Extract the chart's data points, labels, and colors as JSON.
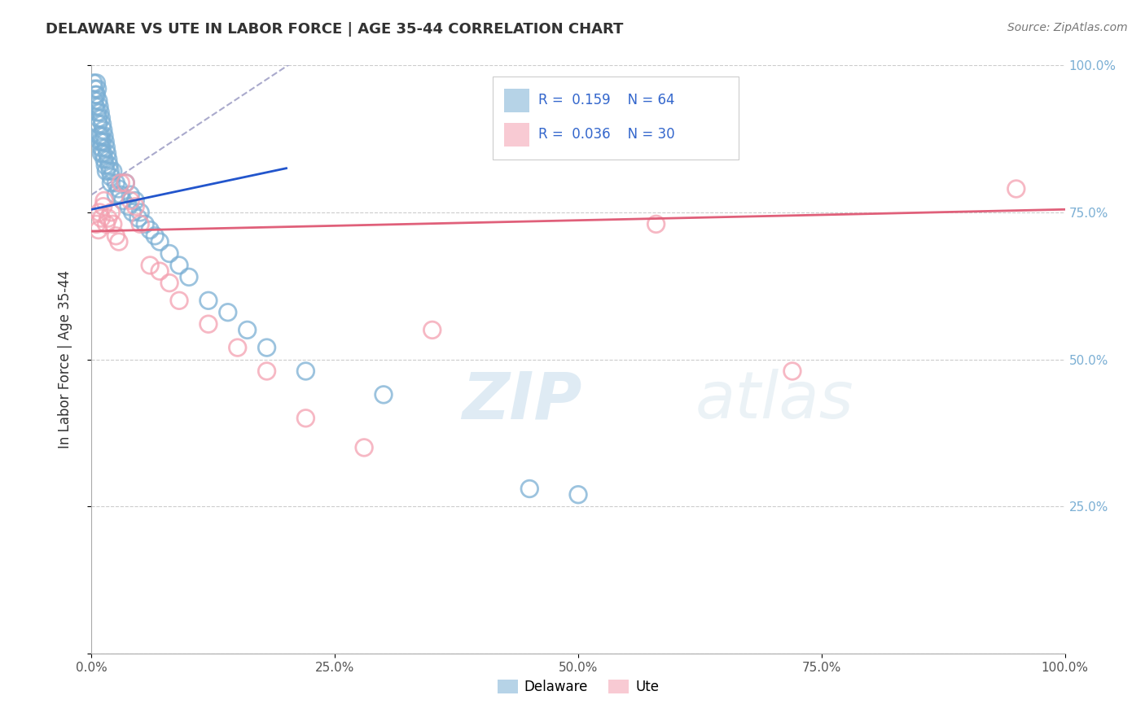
{
  "title": "DELAWARE VS UTE IN LABOR FORCE | AGE 35-44 CORRELATION CHART",
  "source": "Source: ZipAtlas.com",
  "ylabel": "In Labor Force | Age 35-44",
  "xlim": [
    0,
    1.0
  ],
  "ylim": [
    0,
    1.0
  ],
  "xticks": [
    0.0,
    0.25,
    0.5,
    0.75,
    1.0
  ],
  "yticks": [
    0.0,
    0.25,
    0.5,
    0.75,
    1.0
  ],
  "xticklabels": [
    "0.0%",
    "25.0%",
    "50.0%",
    "75.0%",
    "100.0%"
  ],
  "right_yticklabels": [
    "",
    "25.0%",
    "50.0%",
    "75.0%",
    "100.0%"
  ],
  "left_yticklabels": [
    "",
    "",
    "",
    "",
    ""
  ],
  "delaware_color": "#7bafd4",
  "ute_color": "#f4a0b0",
  "delaware_R": 0.159,
  "delaware_N": 64,
  "ute_R": 0.036,
  "ute_N": 30,
  "blue_line_color": "#2255cc",
  "pink_line_color": "#e0607a",
  "dashed_line_color": "#aaaacc",
  "legend_R_color": "#3366cc",
  "background_color": "#ffffff",
  "grid_color": "#cccccc",
  "watermark_color": "#d0e8f5",
  "delaware_x": [
    0.002,
    0.003,
    0.003,
    0.004,
    0.004,
    0.005,
    0.005,
    0.006,
    0.006,
    0.007,
    0.007,
    0.007,
    0.008,
    0.008,
    0.009,
    0.009,
    0.01,
    0.01,
    0.01,
    0.01,
    0.011,
    0.011,
    0.012,
    0.012,
    0.013,
    0.013,
    0.014,
    0.014,
    0.015,
    0.015,
    0.016,
    0.017,
    0.018,
    0.019,
    0.02,
    0.02,
    0.022,
    0.025,
    0.025,
    0.028,
    0.03,
    0.032,
    0.035,
    0.038,
    0.04,
    0.042,
    0.045,
    0.048,
    0.05,
    0.055,
    0.06,
    0.065,
    0.07,
    0.08,
    0.09,
    0.1,
    0.12,
    0.14,
    0.16,
    0.18,
    0.22,
    0.3,
    0.45,
    0.5
  ],
  "delaware_y": [
    0.97,
    0.96,
    0.94,
    0.95,
    0.93,
    0.97,
    0.95,
    0.92,
    0.96,
    0.91,
    0.94,
    0.9,
    0.93,
    0.88,
    0.92,
    0.87,
    0.91,
    0.88,
    0.85,
    0.86,
    0.9,
    0.87,
    0.89,
    0.85,
    0.88,
    0.84,
    0.87,
    0.83,
    0.86,
    0.82,
    0.85,
    0.84,
    0.83,
    0.82,
    0.81,
    0.8,
    0.82,
    0.8,
    0.78,
    0.79,
    0.78,
    0.77,
    0.8,
    0.76,
    0.78,
    0.75,
    0.77,
    0.74,
    0.75,
    0.73,
    0.72,
    0.71,
    0.7,
    0.68,
    0.66,
    0.64,
    0.6,
    0.58,
    0.55,
    0.52,
    0.48,
    0.44,
    0.28,
    0.27
  ],
  "ute_x": [
    0.005,
    0.007,
    0.008,
    0.01,
    0.012,
    0.013,
    0.015,
    0.017,
    0.02,
    0.022,
    0.025,
    0.028,
    0.03,
    0.035,
    0.04,
    0.045,
    0.05,
    0.06,
    0.07,
    0.08,
    0.09,
    0.12,
    0.15,
    0.18,
    0.22,
    0.28,
    0.35,
    0.58,
    0.72,
    0.95
  ],
  "ute_y": [
    0.73,
    0.72,
    0.75,
    0.74,
    0.76,
    0.77,
    0.73,
    0.74,
    0.75,
    0.73,
    0.71,
    0.7,
    0.8,
    0.8,
    0.77,
    0.76,
    0.73,
    0.66,
    0.65,
    0.63,
    0.6,
    0.56,
    0.52,
    0.48,
    0.4,
    0.35,
    0.55,
    0.73,
    0.48,
    0.79
  ],
  "blue_line_x": [
    0.0,
    0.2
  ],
  "blue_line_y": [
    0.755,
    0.825
  ],
  "dashed_line_x": [
    0.0,
    0.22
  ],
  "dashed_line_y": [
    0.78,
    1.02
  ],
  "pink_line_x": [
    0.0,
    1.0
  ],
  "pink_line_y": [
    0.718,
    0.755
  ]
}
